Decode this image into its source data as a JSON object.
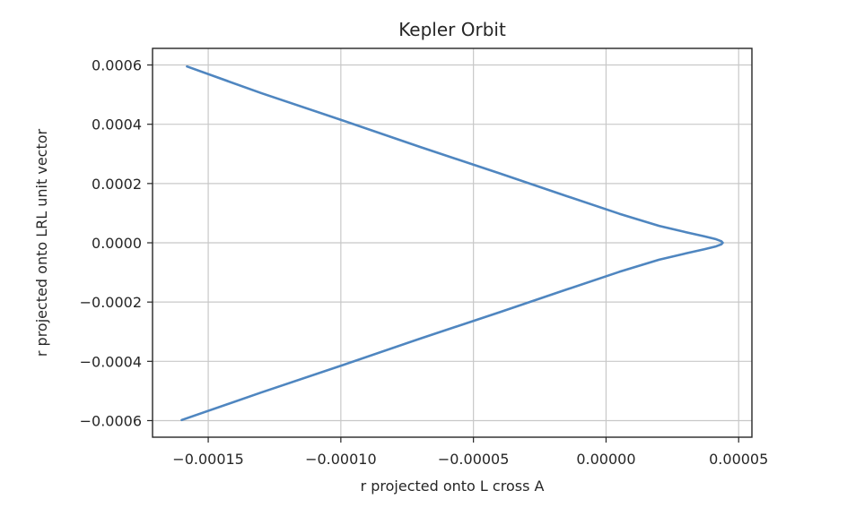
{
  "chart_data": {
    "type": "line",
    "title": "Kepler Orbit",
    "xlabel": "r projected onto L cross A",
    "ylabel": "r projected onto LRL unit vector",
    "xlim": [
      -0.000171,
      5.5e-05
    ],
    "ylim": [
      -0.000656,
      0.000656
    ],
    "grid": true,
    "legend": "none",
    "colors": {
      "series": "#4f86c0",
      "grid": "#c8c8c8",
      "axes": "#262626"
    },
    "x_ticks": [
      {
        "value": -0.00015,
        "label": "−0.00015"
      },
      {
        "value": -0.0001,
        "label": "−0.00010"
      },
      {
        "value": -5e-05,
        "label": "−0.00005"
      },
      {
        "value": 0.0,
        "label": "0.00000"
      },
      {
        "value": 5e-05,
        "label": "0.00005"
      }
    ],
    "y_ticks": [
      {
        "value": 0.0006,
        "label": "0.0006"
      },
      {
        "value": 0.0004,
        "label": "0.0004"
      },
      {
        "value": 0.0002,
        "label": "0.0002"
      },
      {
        "value": 0.0,
        "label": "0.0000"
      },
      {
        "value": -0.0002,
        "label": "−0.0002"
      },
      {
        "value": -0.0004,
        "label": "−0.0004"
      },
      {
        "value": -0.0006,
        "label": "−0.0006"
      }
    ],
    "series": [
      {
        "x": [
          -0.000158,
          -0.00013,
          -0.0001,
          -7e-05,
          -4e-05,
          -1.5e-05,
          5e-06,
          2e-05,
          3e-05,
          3.7e-05,
          4.15e-05,
          4.35e-05,
          4.4e-05,
          4.35e-05,
          4.15e-05,
          3.7e-05,
          3e-05,
          2e-05,
          5e-06,
          -1.5e-05,
          -4e-05,
          -7e-05,
          -0.0001,
          -0.00013,
          -0.00016
        ],
        "y": [
          0.000595,
          0.000505,
          0.000415,
          0.000323,
          0.000234,
          0.000158,
          9.8e-05,
          5.7e-05,
          3.6e-05,
          2.2e-05,
          1.2e-05,
          5e-06,
          0.0,
          -5e-06,
          -1.2e-05,
          -2.2e-05,
          -3.6e-05,
          -5.7e-05,
          -9.8e-05,
          -0.000158,
          -0.000234,
          -0.000323,
          -0.000415,
          -0.000505,
          -0.000598
        ]
      }
    ]
  }
}
